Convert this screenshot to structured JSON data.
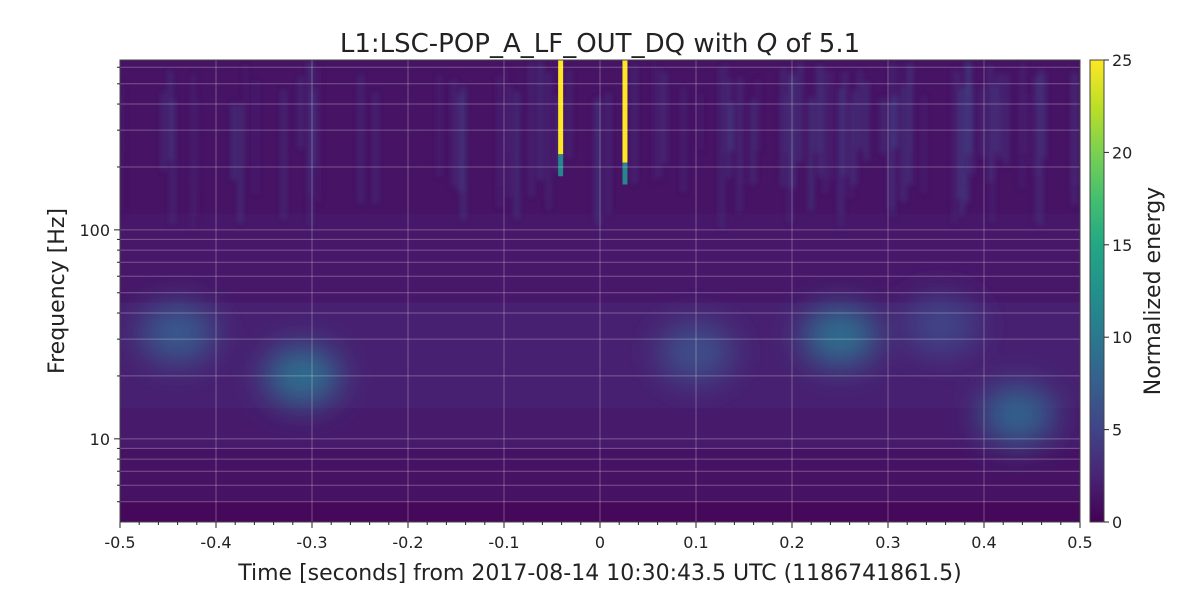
{
  "chart_data": {
    "type": "heatmap",
    "title_prefix": "L1:LSC-POP_A_LF_OUT_DQ with ",
    "title_q": "Q",
    "title_suffix": " of 5.1",
    "xlabel": "Time [seconds] from 2017-08-14 10:30:43.5 UTC (1186741861.5)",
    "ylabel": "Frequency [Hz]",
    "colorbar_label": "Normalized energy",
    "xlim": [
      -0.5,
      0.5
    ],
    "ylim": [
      4,
      650
    ],
    "yscale": "log",
    "grid": true,
    "x_ticks": [
      -0.5,
      -0.4,
      -0.3,
      -0.2,
      -0.1,
      0,
      0.1,
      0.2,
      0.3,
      0.4,
      0.5
    ],
    "x_tick_labels": [
      "-0.5",
      "-0.4",
      "-0.3",
      "-0.2",
      "-0.1",
      "0",
      "0.1",
      "0.2",
      "0.3",
      "0.4",
      "0.5"
    ],
    "y_ticks": [
      10,
      100
    ],
    "y_tick_labels": [
      "10",
      "100"
    ],
    "colorbar_range": [
      0,
      25
    ],
    "colorbar_ticks": [
      0,
      5,
      10,
      15,
      20,
      25
    ],
    "colorbar_tick_labels": [
      "0",
      "5",
      "10",
      "15",
      "20",
      "25"
    ],
    "colormap": "viridis",
    "features": [
      {
        "kind": "spike",
        "time": -0.041,
        "freq_min": 230,
        "freq_max": 650,
        "energy": 25
      },
      {
        "kind": "spike",
        "time": 0.026,
        "freq_min": 210,
        "freq_max": 650,
        "energy": 25
      },
      {
        "kind": "blob",
        "time": -0.31,
        "freq": 20,
        "energy": 9
      },
      {
        "kind": "blob",
        "time": -0.44,
        "freq": 32,
        "energy": 7
      },
      {
        "kind": "blob",
        "time": 0.25,
        "freq": 31,
        "energy": 9
      },
      {
        "kind": "blob",
        "time": 0.435,
        "freq": 13,
        "energy": 8
      },
      {
        "kind": "blob",
        "time": 0.1,
        "freq": 26,
        "energy": 6
      },
      {
        "kind": "blob",
        "time": 0.355,
        "freq": 35,
        "energy": 5
      }
    ]
  }
}
